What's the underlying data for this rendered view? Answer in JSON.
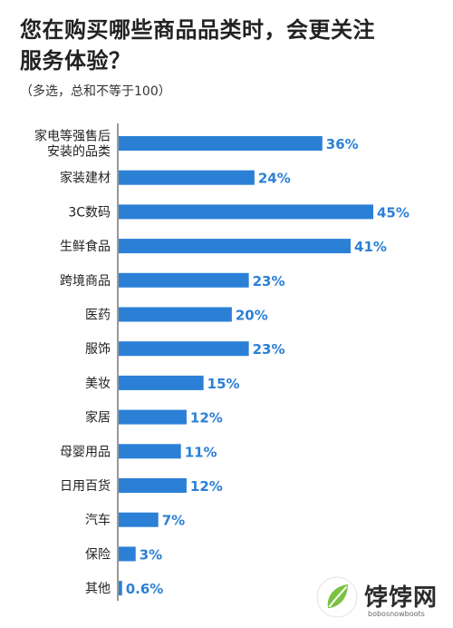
{
  "title_line1": "您在购买哪些商品品类时，会更关注",
  "title_line2": "服务体验？",
  "subtitle": "（多选，总和不等于100）",
  "chart_data": {
    "type": "bar",
    "orientation": "horizontal",
    "title": "您在购买哪些商品品类时，会更关注服务体验？",
    "categories": [
      [
        "家电等强售后",
        "安装的品类"
      ],
      [
        "家装建材"
      ],
      [
        "3C数码"
      ],
      [
        "生鲜食品"
      ],
      [
        "跨境商品"
      ],
      [
        "医药"
      ],
      [
        "服饰"
      ],
      [
        "美妆"
      ],
      [
        "家居"
      ],
      [
        "母婴用品"
      ],
      [
        "日用百货"
      ],
      [
        "汽车"
      ],
      [
        "保险"
      ],
      [
        "其他"
      ]
    ],
    "values": [
      36,
      24,
      45,
      41,
      23,
      20,
      23,
      15,
      12,
      11,
      12,
      7,
      3,
      0.6
    ],
    "value_labels": [
      "36%",
      "24%",
      "45%",
      "41%",
      "23%",
      "20%",
      "23%",
      "15%",
      "12%",
      "11%",
      "12%",
      "7%",
      "3%",
      "0.6%"
    ],
    "bar_color": "#2b80d6",
    "label_color": "#2b80d6",
    "xlim": [
      0,
      45
    ],
    "grid": false,
    "legend": "none"
  },
  "watermark": {
    "name": "饽饽网",
    "url": "bobosnowboots"
  }
}
